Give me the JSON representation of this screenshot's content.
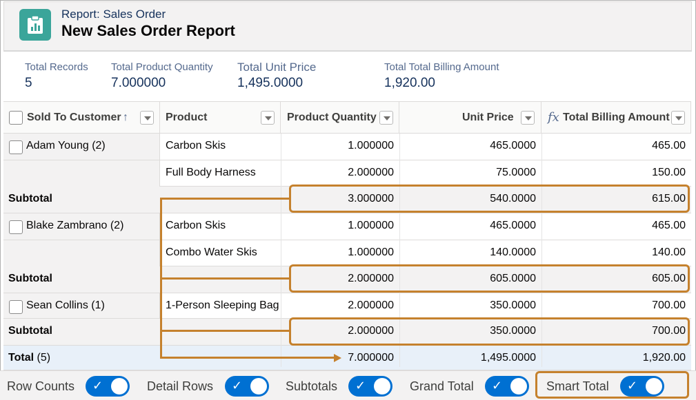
{
  "header": {
    "subtitle": "Report: Sales Order",
    "title": "New Sales Order Report",
    "icon": "report-chart-icon",
    "accent_color": "#3ba59a"
  },
  "summary": [
    {
      "label": "Total Records",
      "value": "5"
    },
    {
      "label": "Total Product Quantity",
      "value": "7.000000"
    },
    {
      "label": "Total Unit  Price",
      "value": "1,495.0000"
    },
    {
      "label": "Total Total Billing Amount",
      "value": "1,920.00"
    }
  ],
  "table": {
    "columns": [
      "Sold To Customer",
      "Product",
      "Product Quantity",
      "Unit  Price",
      "Total Billing Amount"
    ],
    "formula_glyph": "fx",
    "sort_glyph": "↑",
    "groups": [
      {
        "customer": "Adam Young (2)",
        "rows": [
          {
            "product": "Carbon Skis",
            "quantity": "1.000000",
            "unit_price": "465.0000",
            "billing": "465.00"
          },
          {
            "product": "Full Body Harness",
            "quantity": "2.000000",
            "unit_price": "75.0000",
            "billing": "150.00"
          }
        ],
        "subtotal": {
          "label": "Subtotal",
          "quantity": "3.000000",
          "unit_price": "540.0000",
          "billing": "615.00"
        }
      },
      {
        "customer": "Blake Zambrano (2)",
        "rows": [
          {
            "product": "Carbon Skis",
            "quantity": "1.000000",
            "unit_price": "465.0000",
            "billing": "465.00"
          },
          {
            "product": "Combo Water Skis",
            "quantity": "1.000000",
            "unit_price": "140.0000",
            "billing": "140.00"
          }
        ],
        "subtotal": {
          "label": "Subtotal",
          "quantity": "2.000000",
          "unit_price": "605.0000",
          "billing": "605.00"
        }
      },
      {
        "customer": "Sean Collins (1)",
        "rows": [
          {
            "product": "1-Person Sleeping Bag",
            "quantity": "2.000000",
            "unit_price": "350.0000",
            "billing": "700.00"
          }
        ],
        "subtotal": {
          "label": "Subtotal",
          "quantity": "2.000000",
          "unit_price": "350.0000",
          "billing": "700.00"
        }
      }
    ],
    "total": {
      "label": "Total",
      "count": "(5)",
      "quantity": "7.000000",
      "unit_price": "1,495.0000",
      "billing": "1,920.00"
    }
  },
  "footer": {
    "toggles": [
      {
        "label": "Row Counts",
        "on": true
      },
      {
        "label": "Detail Rows",
        "on": true
      },
      {
        "label": "Subtotals",
        "on": true
      },
      {
        "label": "Grand Total",
        "on": true
      },
      {
        "label": "Smart Total",
        "on": true
      }
    ],
    "toggle_color": "#0070d2"
  },
  "annotation_color": "#c5812d"
}
